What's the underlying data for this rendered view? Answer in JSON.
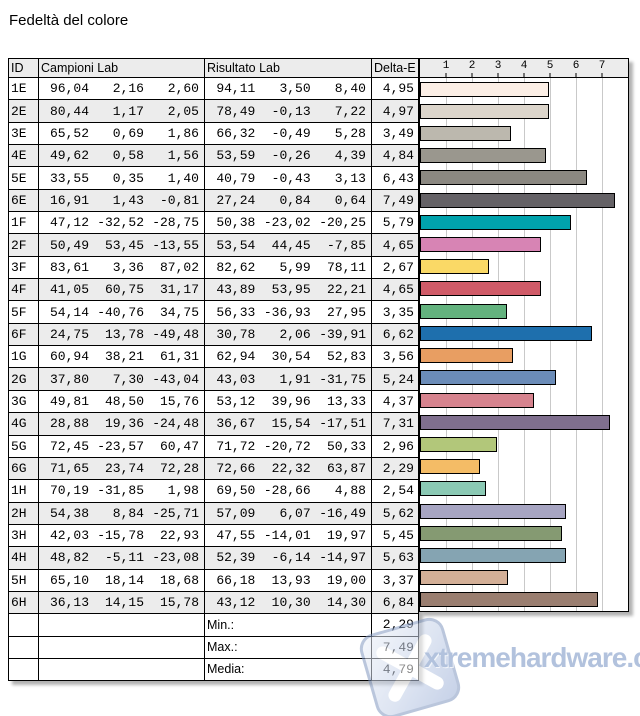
{
  "title": "Fedeltà del colore",
  "table": {
    "headers": {
      "id": "ID",
      "campioni": "Campioni Lab",
      "risultato": "Risultato Lab",
      "delta": "Delta-E"
    },
    "rows": [
      {
        "id": "1E",
        "campioni": [
          "96,04",
          "2,16",
          "2,60"
        ],
        "risultato": [
          "94,11",
          "3,50",
          "8,40"
        ],
        "delta": "4,95",
        "delta_value": 4.95,
        "color": "#fcefe6"
      },
      {
        "id": "2E",
        "campioni": [
          "80,44",
          "1,17",
          "2,05"
        ],
        "risultato": [
          "78,49",
          "-0,13",
          "7,22"
        ],
        "delta": "4,97",
        "delta_value": 4.97,
        "color": "#dcd5cb"
      },
      {
        "id": "3E",
        "campioni": [
          "65,52",
          "0,69",
          "1,86"
        ],
        "risultato": [
          "66,32",
          "-0,49",
          "5,28"
        ],
        "delta": "3,49",
        "delta_value": 3.49,
        "color": "#bcb8ae"
      },
      {
        "id": "4E",
        "campioni": [
          "49,62",
          "0,58",
          "1,56"
        ],
        "risultato": [
          "53,59",
          "-0,26",
          "4,39"
        ],
        "delta": "4,84",
        "delta_value": 4.84,
        "color": "#9a978e"
      },
      {
        "id": "5E",
        "campioni": [
          "33,55",
          "0,35",
          "1,40"
        ],
        "risultato": [
          "40,79",
          "-0,43",
          "3,13"
        ],
        "delta": "6,43",
        "delta_value": 6.43,
        "color": "#8b8881"
      },
      {
        "id": "6E",
        "campioni": [
          "16,91",
          "1,43",
          "-0,81"
        ],
        "risultato": [
          "27,24",
          "0,84",
          "0,64"
        ],
        "delta": "7,49",
        "delta_value": 7.49,
        "color": "#656266"
      },
      {
        "id": "1F",
        "campioni": [
          "47,12",
          "-32,52",
          "-28,75"
        ],
        "risultato": [
          "50,38",
          "-23,02",
          "-20,25"
        ],
        "delta": "5,79",
        "delta_value": 5.79,
        "color": "#00a2ac"
      },
      {
        "id": "2F",
        "campioni": [
          "50,49",
          "53,45",
          "-13,55"
        ],
        "risultato": [
          "53,54",
          "44,45",
          "-7,85"
        ],
        "delta": "4,65",
        "delta_value": 4.65,
        "color": "#d784b4"
      },
      {
        "id": "3F",
        "campioni": [
          "83,61",
          "3,36",
          "87,02"
        ],
        "risultato": [
          "82,62",
          "5,99",
          "78,11"
        ],
        "delta": "2,67",
        "delta_value": 2.67,
        "color": "#fad966"
      },
      {
        "id": "4F",
        "campioni": [
          "41,05",
          "60,75",
          "31,17"
        ],
        "risultato": [
          "43,89",
          "53,95",
          "22,21"
        ],
        "delta": "4,65",
        "delta_value": 4.65,
        "color": "#d05b68"
      },
      {
        "id": "5F",
        "campioni": [
          "54,14",
          "-40,76",
          "34,75"
        ],
        "risultato": [
          "56,33",
          "-36,93",
          "27,95"
        ],
        "delta": "3,35",
        "delta_value": 3.35,
        "color": "#63b27e"
      },
      {
        "id": "6F",
        "campioni": [
          "24,75",
          "13,78",
          "-49,48"
        ],
        "risultato": [
          "30,78",
          "2,06",
          "-39,91"
        ],
        "delta": "6,62",
        "delta_value": 6.62,
        "color": "#1e6fad"
      },
      {
        "id": "1G",
        "campioni": [
          "60,94",
          "38,21",
          "61,31"
        ],
        "risultato": [
          "62,94",
          "30,54",
          "52,83"
        ],
        "delta": "3,56",
        "delta_value": 3.56,
        "color": "#e89e62"
      },
      {
        "id": "2G",
        "campioni": [
          "37,80",
          "7,30",
          "-43,04"
        ],
        "risultato": [
          "43,03",
          "1,91",
          "-31,75"
        ],
        "delta": "5,24",
        "delta_value": 5.24,
        "color": "#6b8cb8"
      },
      {
        "id": "3G",
        "campioni": [
          "49,81",
          "48,50",
          "15,76"
        ],
        "risultato": [
          "53,12",
          "39,96",
          "13,33"
        ],
        "delta": "4,37",
        "delta_value": 4.37,
        "color": "#d6838e"
      },
      {
        "id": "4G",
        "campioni": [
          "28,88",
          "19,36",
          "-24,48"
        ],
        "risultato": [
          "36,67",
          "15,54",
          "-17,51"
        ],
        "delta": "7,31",
        "delta_value": 7.31,
        "color": "#7f6f8e"
      },
      {
        "id": "5G",
        "campioni": [
          "72,45",
          "-23,57",
          "60,47"
        ],
        "risultato": [
          "71,72",
          "-20,72",
          "50,33"
        ],
        "delta": "2,96",
        "delta_value": 2.96,
        "color": "#b2c77a"
      },
      {
        "id": "6G",
        "campioni": [
          "71,65",
          "23,74",
          "72,28"
        ],
        "risultato": [
          "72,66",
          "22,32",
          "63,87"
        ],
        "delta": "2,29",
        "delta_value": 2.29,
        "color": "#f4bc66"
      },
      {
        "id": "1H",
        "campioni": [
          "70,19",
          "-31,85",
          "1,98"
        ],
        "risultato": [
          "69,50",
          "-28,66",
          "4,88"
        ],
        "delta": "2,54",
        "delta_value": 2.54,
        "color": "#8bc9b4"
      },
      {
        "id": "2H",
        "campioni": [
          "54,38",
          "8,84",
          "-25,71"
        ],
        "risultato": [
          "57,09",
          "6,07",
          "-16,49"
        ],
        "delta": "5,62",
        "delta_value": 5.62,
        "color": "#a7a5c2"
      },
      {
        "id": "3H",
        "campioni": [
          "42,03",
          "-15,78",
          "22,93"
        ],
        "risultato": [
          "47,55",
          "-14,01",
          "19,97"
        ],
        "delta": "5,45",
        "delta_value": 5.45,
        "color": "#859a72"
      },
      {
        "id": "4H",
        "campioni": [
          "48,82",
          "-5,11",
          "-23,08"
        ],
        "risultato": [
          "52,39",
          "-6,14",
          "-14,97"
        ],
        "delta": "5,63",
        "delta_value": 5.63,
        "color": "#85a4b2"
      },
      {
        "id": "5H",
        "campioni": [
          "65,10",
          "18,14",
          "18,68"
        ],
        "risultato": [
          "66,18",
          "13,93",
          "19,00"
        ],
        "delta": "3,37",
        "delta_value": 3.37,
        "color": "#d3af97"
      },
      {
        "id": "6H",
        "campioni": [
          "36,13",
          "14,15",
          "15,78"
        ],
        "risultato": [
          "43,12",
          "10,30",
          "14,30"
        ],
        "delta": "6,84",
        "delta_value": 6.84,
        "color": "#9a7e70"
      }
    ],
    "summary": [
      {
        "label": "Min.:",
        "value": "2,29"
      },
      {
        "label": "Max.:",
        "value": "7,49"
      },
      {
        "label": "Media:",
        "value": "4,79"
      }
    ]
  },
  "chart": {
    "ticks": [
      "1",
      "2",
      "3",
      "4",
      "5",
      "6",
      "7"
    ],
    "axis_max": 8,
    "grid_color": "#c9c9c9"
  },
  "watermark": {
    "text": "xtremehardware.com"
  },
  "chart_data": {
    "type": "bar",
    "orientation": "horizontal",
    "title": "Fedeltà del colore",
    "xlabel": "Delta-E",
    "xlim": [
      0,
      8
    ],
    "x_ticks": [
      1,
      2,
      3,
      4,
      5,
      6,
      7
    ],
    "grid": true,
    "categories": [
      "1E",
      "2E",
      "3E",
      "4E",
      "5E",
      "6E",
      "1F",
      "2F",
      "3F",
      "4F",
      "5F",
      "6F",
      "1G",
      "2G",
      "3G",
      "4G",
      "5G",
      "6G",
      "1H",
      "2H",
      "3H",
      "4H",
      "5H",
      "6H"
    ],
    "values": [
      4.95,
      4.97,
      3.49,
      4.84,
      6.43,
      7.49,
      5.79,
      4.65,
      2.67,
      4.65,
      3.35,
      6.62,
      3.56,
      5.24,
      4.37,
      7.31,
      2.96,
      2.29,
      2.54,
      5.62,
      5.45,
      5.63,
      3.37,
      6.84
    ],
    "bar_colors": [
      "#fcefe6",
      "#dcd5cb",
      "#bcb8ae",
      "#9a978e",
      "#8b8881",
      "#656266",
      "#00a2ac",
      "#d784b4",
      "#fad966",
      "#d05b68",
      "#63b27e",
      "#1e6fad",
      "#e89e62",
      "#6b8cb8",
      "#d6838e",
      "#7f6f8e",
      "#b2c77a",
      "#f4bc66",
      "#8bc9b4",
      "#a7a5c2",
      "#859a72",
      "#85a4b2",
      "#d3af97",
      "#9a7e70"
    ],
    "summary": {
      "min": 2.29,
      "max": 7.49,
      "media": 4.79
    }
  }
}
